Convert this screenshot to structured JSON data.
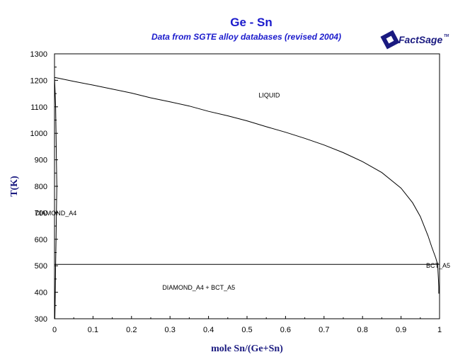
{
  "chart_data": {
    "type": "line",
    "title": "Ge - Sn",
    "subtitle": "Data from SGTE alloy databases (revised 2004)",
    "xlabel": "mole Sn/(Ge+Sn)",
    "ylabel": "T(K)",
    "xlim": [
      0,
      1
    ],
    "ylim": [
      300,
      1300
    ],
    "x_ticks": [
      0,
      0.1,
      0.2,
      0.3,
      0.4,
      0.5,
      0.6,
      0.7,
      0.8,
      0.9,
      1
    ],
    "x_tick_labels": [
      "0",
      "0.1",
      "0.2",
      "0.3",
      "0.4",
      "0.5",
      "0.6",
      "0.7",
      "0.8",
      "0.9",
      "1"
    ],
    "y_ticks": [
      300,
      400,
      500,
      600,
      700,
      800,
      900,
      1000,
      1100,
      1200,
      1300
    ],
    "y_tick_labels": [
      "300",
      "400",
      "500",
      "600",
      "700",
      "800",
      "900",
      "1000",
      "1100",
      "1200",
      "1300"
    ],
    "grid": false,
    "liquidus": {
      "x": [
        0,
        0.05,
        0.1,
        0.15,
        0.2,
        0.25,
        0.3,
        0.35,
        0.4,
        0.45,
        0.5,
        0.55,
        0.6,
        0.65,
        0.7,
        0.75,
        0.8,
        0.85,
        0.9,
        0.93,
        0.95,
        0.97,
        0.98,
        0.99,
        0.995
      ],
      "y": [
        1211,
        1196,
        1182,
        1167,
        1152,
        1134,
        1119,
        1103,
        1083,
        1066,
        1047,
        1025,
        1004,
        981,
        956,
        927,
        893,
        852,
        793,
        738,
        686,
        613,
        570,
        530,
        505
      ]
    },
    "ge_solidus": {
      "x": [
        0,
        0.001,
        0.003,
        0.004,
        0.005,
        0.006,
        0.005,
        0.004,
        0.003,
        0.002,
        0.001
      ],
      "y": [
        1211,
        1180,
        1100,
        1000,
        900,
        800,
        700,
        600,
        505,
        400,
        300
      ]
    },
    "sn_solidus": {
      "x": [
        0.995,
        0.996,
        0.997,
        0.998,
        0.998
      ],
      "y": [
        505,
        480,
        450,
        420,
        395
      ]
    },
    "eutectic_line": {
      "x": [
        0,
        1
      ],
      "y": [
        505,
        505
      ]
    },
    "annotations": [
      {
        "text": "LIQUID",
        "x": 0.53,
        "y": 1135
      },
      {
        "text": "DIAMOND_A4",
        "x": -0.05,
        "y": 690
      },
      {
        "text": "DIAMOND_A4 + BCT_A5",
        "x": 0.28,
        "y": 410
      },
      {
        "text": "BCT_A5",
        "x": 0.965,
        "y": 493
      }
    ]
  },
  "logo": {
    "text": "FactSage",
    "tm": "TM"
  },
  "colors": {
    "title": "#1a1acc",
    "axis_label": "#1a1a80",
    "curve": "#000000"
  }
}
